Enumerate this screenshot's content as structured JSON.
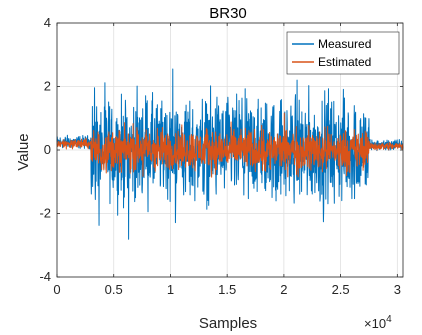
{
  "chart_data": {
    "type": "line",
    "title": "BR30",
    "xlabel": "Samples",
    "ylabel": "Value",
    "x_exponent_label": "×10",
    "x_exponent_power": "4",
    "xlim": [
      0,
      30500
    ],
    "ylim": [
      -4,
      4
    ],
    "x_ticks": [
      0,
      5000,
      10000,
      15000,
      20000,
      25000,
      30000
    ],
    "x_tick_labels": [
      "0",
      "0.5",
      "1",
      "1.5",
      "2",
      "2.5",
      "3"
    ],
    "y_ticks": [
      -4,
      -2,
      0,
      2,
      4
    ],
    "y_tick_labels": [
      "-4",
      "-2",
      "0",
      "2",
      "4"
    ],
    "grid": true,
    "legend_position": "top-right",
    "series": [
      {
        "name": "Measured",
        "color": "#0072BD",
        "segments": [
          {
            "x_start": 0,
            "x_end": 3000,
            "amplitude": 0.4,
            "offset": 0.25
          },
          {
            "x_start": 3000,
            "x_end": 27500,
            "amplitude": 3.2,
            "offset": 0.0
          },
          {
            "x_start": 27500,
            "x_end": 30500,
            "amplitude": 0.35,
            "offset": 0.15
          }
        ]
      },
      {
        "name": "Estimated",
        "color": "#D95319",
        "segments": [
          {
            "x_start": 0,
            "x_end": 3000,
            "amplitude": 0.3,
            "offset": 0.2
          },
          {
            "x_start": 3000,
            "x_end": 27500,
            "amplitude": 1.3,
            "offset": 0.0
          },
          {
            "x_start": 27500,
            "x_end": 30500,
            "amplitude": 0.25,
            "offset": 0.12
          }
        ]
      }
    ]
  }
}
